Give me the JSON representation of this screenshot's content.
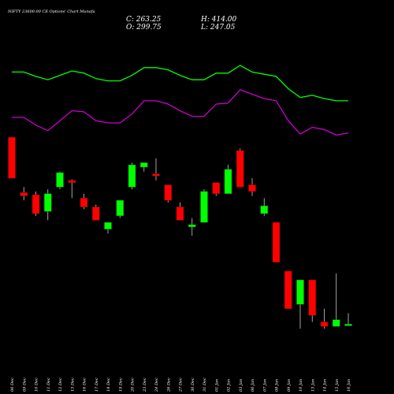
{
  "chart_data": {
    "type": "candlestick",
    "title": "NIFTY 23600.00 CE Options' Chart Munafa",
    "ohlc_readout": {
      "c": "C: 263.25",
      "h": "H: 414.00",
      "o": "O: 299.75",
      "l": "L: 247.05"
    },
    "colors": {
      "up": "#00ff00",
      "down": "#ff0000",
      "line_upper": "#00ff00",
      "line_lower": "#cc00cc",
      "background": "#000000",
      "text": "#ffffff"
    },
    "categories": [
      "06 Dec",
      "09 Dec",
      "10 Dec",
      "11 Dec",
      "12 Dec",
      "13 Dec",
      "16 Dec",
      "17 Dec",
      "18 Dec",
      "19 Dec",
      "20 Dec",
      "23 Dec",
      "24 Dec",
      "26 Dec",
      "27 Dec",
      "30 Dec",
      "31 Dec",
      "01 Jan",
      "02 Jan",
      "03 Jan",
      "06 Jan",
      "07 Jan",
      "08 Jan",
      "09 Jan",
      "10 Jan",
      "13 Jan",
      "14 Jan",
      "15 Jan",
      "16 Jan"
    ],
    "candles": [
      {
        "o": 755,
        "h": 755,
        "l": 570,
        "c": 570
      },
      {
        "o": 505,
        "h": 530,
        "l": 470,
        "c": 490
      },
      {
        "o": 495,
        "h": 510,
        "l": 400,
        "c": 410
      },
      {
        "o": 420,
        "h": 520,
        "l": 380,
        "c": 500
      },
      {
        "o": 530,
        "h": 600,
        "l": 520,
        "c": 595
      },
      {
        "o": 560,
        "h": 565,
        "l": 480,
        "c": 550
      },
      {
        "o": 480,
        "h": 500,
        "l": 430,
        "c": 440
      },
      {
        "o": 440,
        "h": 450,
        "l": 380,
        "c": 380
      },
      {
        "o": 340,
        "h": 370,
        "l": 320,
        "c": 370
      },
      {
        "o": 400,
        "h": 470,
        "l": 390,
        "c": 470
      },
      {
        "o": 530,
        "h": 640,
        "l": 520,
        "c": 630
      },
      {
        "o": 620,
        "h": 640,
        "l": 600,
        "c": 640
      },
      {
        "o": 590,
        "h": 660,
        "l": 560,
        "c": 580
      },
      {
        "o": 540,
        "h": 540,
        "l": 460,
        "c": 470
      },
      {
        "o": 440,
        "h": 460,
        "l": 380,
        "c": 380
      },
      {
        "o": 350,
        "h": 390,
        "l": 310,
        "c": 360
      },
      {
        "o": 370,
        "h": 520,
        "l": 370,
        "c": 510
      },
      {
        "o": 550,
        "h": 550,
        "l": 490,
        "c": 500
      },
      {
        "o": 500,
        "h": 630,
        "l": 500,
        "c": 610
      },
      {
        "o": 695,
        "h": 705,
        "l": 530,
        "c": 530
      },
      {
        "o": 540,
        "h": 570,
        "l": 490,
        "c": 510
      },
      {
        "o": 410,
        "h": 480,
        "l": 400,
        "c": 445
      },
      {
        "o": 370,
        "h": 370,
        "l": 190,
        "c": 190
      },
      {
        "o": 150,
        "h": 150,
        "l": -20,
        "c": -20
      },
      {
        "o": 0,
        "h": 110,
        "l": -110,
        "c": 110
      },
      {
        "o": 110,
        "h": 110,
        "l": -80,
        "c": -50
      },
      {
        "o": -80,
        "h": -20,
        "l": -110,
        "c": -100
      },
      {
        "o": -100,
        "h": 140,
        "l": -100,
        "c": -70
      },
      {
        "o": -90,
        "h": -40,
        "l": -90,
        "c": -90
      }
    ],
    "upper_line": [
      1050,
      1050,
      1030,
      1015,
      1035,
      1055,
      1045,
      1020,
      1010,
      1010,
      1035,
      1070,
      1070,
      1060,
      1035,
      1015,
      1015,
      1045,
      1045,
      1080,
      1050,
      1040,
      1030,
      975,
      935,
      945,
      930,
      920,
      920
    ],
    "lower_line": [
      845,
      845,
      810,
      785,
      830,
      875,
      870,
      830,
      820,
      820,
      860,
      920,
      920,
      905,
      875,
      850,
      850,
      905,
      910,
      970,
      950,
      930,
      920,
      830,
      770,
      800,
      790,
      765,
      775
    ]
  }
}
